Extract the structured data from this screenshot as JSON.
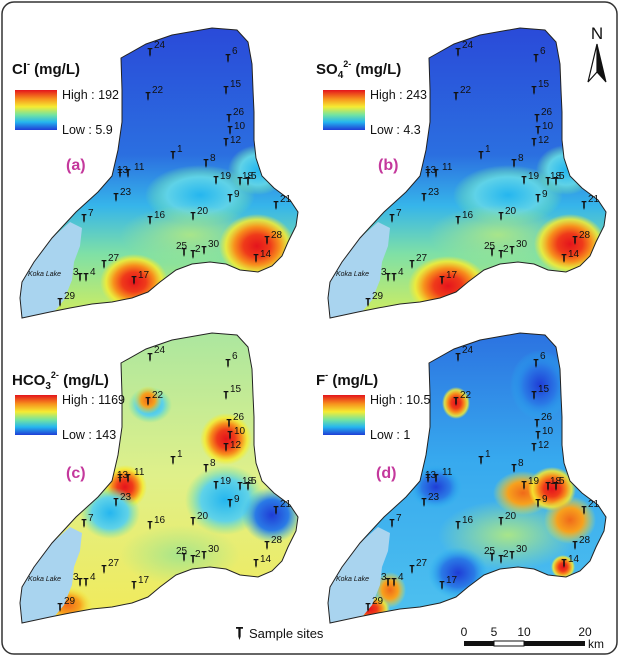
{
  "panels": [
    {
      "id": "a",
      "label": "(a)",
      "param_main": "Cl",
      "param_sub": "",
      "param_sup": "-",
      "unit": " (mg/L)",
      "high_text": "High : 192",
      "low_text": "Low : 5.9",
      "lake_label": "Koka Lake",
      "hotspots": [
        "17",
        "28",
        "14"
      ]
    },
    {
      "id": "b",
      "label": "(b)",
      "param_main": "SO",
      "param_sub": "4",
      "param_sup": "2-",
      "unit": " (mg/L)",
      "high_text": "High : 243",
      "low_text": "Low : 4.3",
      "lake_label": "Koka Lake",
      "hotspots": [
        "17",
        "28",
        "14"
      ]
    },
    {
      "id": "c",
      "label": "(c)",
      "param_main": "HCO",
      "param_sub": "3",
      "param_sup": "2-",
      "unit": " (mg/L)",
      "high_text": "High : 1169",
      "low_text": "Low : 143",
      "lake_label": "Koka Lake",
      "hotspots": [
        "13",
        "11",
        "26",
        "10",
        "29"
      ]
    },
    {
      "id": "d",
      "label": "(d)",
      "param_main": "F",
      "param_sub": "",
      "param_sup": "-",
      "unit": " (mg/L)",
      "high_text": "High : 10.5",
      "low_text": "Low : 1",
      "lake_label": "Koka Lake",
      "hotspots": [
        "22",
        "18",
        "5",
        "29",
        "14"
      ]
    }
  ],
  "sample_sites": [
    "24",
    "6",
    "22",
    "15",
    "26",
    "10",
    "12",
    "1",
    "8",
    "13",
    "11",
    "19",
    "18",
    "5",
    "9",
    "23",
    "21",
    "7",
    "16",
    "20",
    "28",
    "25",
    "2",
    "30",
    "14",
    "27",
    "4",
    "3",
    "17",
    "29"
  ],
  "legend_sample_sites": "Sample sites",
  "north_label": "N",
  "scale_ticks": [
    "0",
    "5",
    "10",
    "20"
  ],
  "scale_unit": "km",
  "colors": {
    "frame_border": "#333333",
    "lake": "#a9d4ef",
    "label_accent": "#c4389c"
  }
}
